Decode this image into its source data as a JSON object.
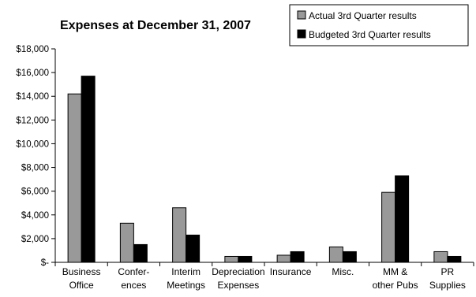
{
  "chart_data": {
    "type": "bar",
    "title": "Expenses at December 31, 2007",
    "xlabel": "",
    "ylabel": "",
    "ylim": [
      0,
      18000
    ],
    "yticks": [
      {
        "value": 0,
        "label": "$-"
      },
      {
        "value": 2000,
        "label": "$2,000"
      },
      {
        "value": 4000,
        "label": "$4,000"
      },
      {
        "value": 6000,
        "label": "$6,000"
      },
      {
        "value": 8000,
        "label": "$8,000"
      },
      {
        "value": 10000,
        "label": "$10,000"
      },
      {
        "value": 12000,
        "label": "$12,000"
      },
      {
        "value": 14000,
        "label": "$14,000"
      },
      {
        "value": 16000,
        "label": "$16,000"
      },
      {
        "value": 18000,
        "label": "$18,000"
      }
    ],
    "categories": [
      [
        "Business",
        "Office"
      ],
      [
        "Confer-",
        "ences"
      ],
      [
        "Interim",
        "Meetings"
      ],
      [
        "Depreciation",
        "Expenses"
      ],
      [
        "Insurance"
      ],
      [
        "Misc."
      ],
      [
        "MM &",
        "other Pubs"
      ],
      [
        "PR",
        "Supplies"
      ]
    ],
    "series": [
      {
        "name": "Actual 3rd Quarter results",
        "color": "#999999",
        "values": [
          14200,
          3300,
          4600,
          500,
          600,
          1300,
          5900,
          900
        ]
      },
      {
        "name": "Budgeted 3rd Quarter results",
        "color": "#000000",
        "values": [
          15700,
          1500,
          2300,
          500,
          900,
          900,
          7300,
          500
        ]
      }
    ],
    "legend_position": "top-right",
    "grid": false
  }
}
